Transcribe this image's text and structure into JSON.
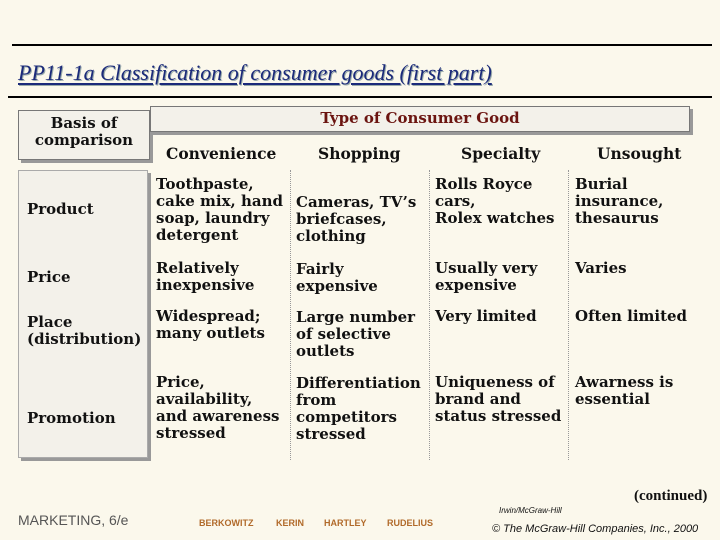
{
  "title": "PP11-1a   Classification of consumer goods  (first part)",
  "header": {
    "basis": "Basis of\ncomparison",
    "type": "Type of Consumer Good"
  },
  "columns": [
    "Convenience",
    "Shopping",
    "Specialty",
    "Unsought"
  ],
  "rows": [
    {
      "label": "Product",
      "cells": [
        "Toothpaste,\ncake mix, hand\nsoap, laundry\ndetergent",
        "Cameras, TV’s\nbriefcases,\nclothing",
        "Rolls Royce\ncars,\nRolex watches",
        "Burial\ninsurance,\nthesaurus"
      ]
    },
    {
      "label": "Price",
      "cells": [
        "Relatively\ninexpensive",
        "Fairly\nexpensive",
        "Usually very\nexpensive",
        "Varies"
      ]
    },
    {
      "label": "Place\n(distribution)",
      "cells": [
        "Widespread;\nmany outlets",
        "Large number\nof selective\noutlets",
        "Very limited",
        "Often limited"
      ]
    },
    {
      "label": "Promotion",
      "cells": [
        "Price,\navailability,\nand awareness\nstressed",
        "Differentiation\nfrom\ncompetitors\nstressed",
        "Uniqueness of\nbrand and\nstatus stressed",
        "Awarness is\nessential"
      ]
    }
  ],
  "footer": {
    "left": "MARKETING, 6/e",
    "authors": [
      "BERKOWITZ",
      "KERIN",
      "HARTLEY",
      "RUDELIUS"
    ],
    "continued": "(continued)",
    "publisher": "Irwin/McGraw-Hill",
    "copyright": "© The McGraw-Hill Companies, Inc., 2000"
  }
}
